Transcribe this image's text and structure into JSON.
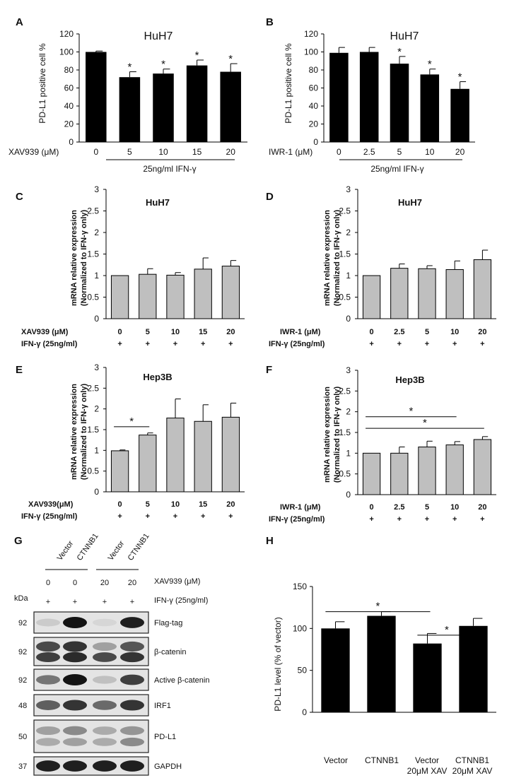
{
  "figure": {
    "A": {
      "letter": "A",
      "title": "HuH7",
      "ylabel": "PD-L1  positive cell %",
      "xlabel": "XAV939 (μM)",
      "treatment": "25ng/ml IFN-γ"
    },
    "B": {
      "letter": "B",
      "title": "HuH7",
      "ylabel": "PD-L1  positive cell %",
      "xlabel": "IWR-1 (μM)",
      "treatment": "25ng/ml IFN-γ"
    },
    "C": {
      "letter": "C",
      "title": "HuH7",
      "ylabel1": "mRNA relative expression",
      "ylabel2": "(Normalized to IFN-γ only)",
      "row1_label": "XAV939 (μM)",
      "row2_label": "IFN-γ (25ng/ml)",
      "plus": "+"
    },
    "D": {
      "letter": "D",
      "title": "HuH7",
      "ylabel1": "mRNA relative expression",
      "ylabel2": "(Normalized to IFN-γ only)",
      "row1_label": "IWR-1 (μM)",
      "row2_label": "IFN-γ (25ng/ml)",
      "plus": "+"
    },
    "E": {
      "letter": "E",
      "title": "Hep3B",
      "ylabel1": "mRNA relative expression",
      "ylabel2": "(Normalized to IFN-γ only)",
      "row1_label": "XAV939(μM)",
      "row2_label": "IFN-γ (25ng/ml)",
      "plus": "+"
    },
    "F": {
      "letter": "F",
      "title": "Hep3B",
      "ylabel1": "mRNA relative expression",
      "ylabel2": "(Normalized to IFN-γ only)",
      "row1_label": "IWR-1 (μM)",
      "row2_label": "IFN-γ (25ng/ml)",
      "plus": "+"
    },
    "G": {
      "letter": "G",
      "lanes": [
        "Vector",
        "CTNNB1",
        "Vector",
        "CTNNB1"
      ],
      "xav_values": [
        "0",
        "0",
        "20",
        "20"
      ],
      "xav_label": "XAV939 (μM)",
      "ifn_label": "IFN-γ (25ng/ml)",
      "plus": "+",
      "kda_label": "kDa",
      "blots": [
        {
          "kda": "92",
          "name": "Flag-tag"
        },
        {
          "kda": "92",
          "name": "β-catenin"
        },
        {
          "kda": "92",
          "name": "Active β-catenin"
        },
        {
          "kda": "48",
          "name": "IRF1"
        },
        {
          "kda": "50",
          "name": "PD-L1"
        },
        {
          "kda": "37",
          "name": "GAPDH"
        }
      ]
    },
    "H": {
      "letter": "H",
      "ylabel": "PD-L1 level (% of vector)",
      "xline1": [
        "Vector",
        "CTNNB1",
        "Vector",
        "CTNNB1"
      ],
      "xline2": [
        "",
        "",
        "20μM XAV",
        "20μM XAV"
      ]
    }
  },
  "chart_data": [
    {
      "panel": "A",
      "type": "bar",
      "title": "HuH7",
      "categories": [
        "0",
        "5",
        "10",
        "15",
        "20"
      ],
      "values": [
        100,
        72,
        76,
        85,
        78
      ],
      "errors": [
        1,
        6,
        5,
        6,
        9
      ],
      "significant": [
        false,
        true,
        true,
        true,
        true
      ],
      "xlabel": "XAV939 (μM)",
      "ylabel": "PD-L1  positive cell %",
      "ylim": [
        0,
        120
      ],
      "yticks": [
        0,
        20,
        40,
        60,
        80,
        100,
        120
      ],
      "bar_color": "#000000",
      "significance_label": "*"
    },
    {
      "panel": "B",
      "type": "bar",
      "title": "HuH7",
      "categories": [
        "0",
        "2.5",
        "5",
        "10",
        "20"
      ],
      "values": [
        99,
        100,
        87,
        75,
        59
      ],
      "errors": [
        6,
        5,
        8,
        6,
        8
      ],
      "significant": [
        false,
        false,
        true,
        true,
        true
      ],
      "xlabel": "IWR-1 (μM)",
      "ylabel": "PD-L1  positive cell %",
      "ylim": [
        0,
        120
      ],
      "yticks": [
        0,
        20,
        40,
        60,
        80,
        100,
        120
      ],
      "bar_color": "#000000",
      "significance_label": "*"
    },
    {
      "panel": "C",
      "type": "bar",
      "title": "HuH7",
      "categories": [
        "0",
        "5",
        "10",
        "15",
        "20"
      ],
      "values": [
        1.0,
        1.03,
        1.01,
        1.15,
        1.22
      ],
      "errors": [
        0,
        0.13,
        0.06,
        0.26,
        0.13
      ],
      "xlabel": "XAV939 (μM)",
      "ylabel": "mRNA relative expression (Normalized to IFN-γ only)",
      "ylim": [
        0,
        3
      ],
      "yticks": [
        0,
        0.5,
        1,
        1.5,
        2,
        2.5,
        3
      ],
      "bar_color": "#bfbfbf",
      "brackets": []
    },
    {
      "panel": "D",
      "type": "bar",
      "title": "HuH7",
      "categories": [
        "0",
        "2.5",
        "5",
        "10",
        "20"
      ],
      "values": [
        1.0,
        1.17,
        1.16,
        1.14,
        1.37
      ],
      "errors": [
        0,
        0.1,
        0.07,
        0.2,
        0.22
      ],
      "xlabel": "IWR-1 (μM)",
      "ylabel": "mRNA relative expression (Normalized to IFN-γ only)",
      "ylim": [
        0,
        3
      ],
      "yticks": [
        0,
        0.5,
        1,
        1.5,
        2,
        2.5,
        3
      ],
      "bar_color": "#bfbfbf",
      "brackets": []
    },
    {
      "panel": "E",
      "type": "bar",
      "title": "Hep3B",
      "categories": [
        "0",
        "5",
        "10",
        "15",
        "20"
      ],
      "values": [
        0.99,
        1.37,
        1.78,
        1.7,
        1.8
      ],
      "errors": [
        0.02,
        0.05,
        0.46,
        0.4,
        0.34
      ],
      "xlabel": "XAV939(μM)",
      "ylabel": "mRNA relative expression (Normalized to IFN-γ only)",
      "ylim": [
        0,
        3
      ],
      "yticks": [
        0,
        0.5,
        1,
        1.5,
        2,
        2.5,
        3
      ],
      "bar_color": "#bfbfbf",
      "brackets": [
        {
          "from": 0,
          "to": 1,
          "at": 1.57,
          "label": "*"
        }
      ]
    },
    {
      "panel": "F",
      "type": "bar",
      "title": "Hep3B",
      "categories": [
        "0",
        "2.5",
        "5",
        "10",
        "20"
      ],
      "values": [
        1.0,
        1.0,
        1.15,
        1.2,
        1.33
      ],
      "errors": [
        0,
        0.15,
        0.14,
        0.08,
        0.07
      ],
      "xlabel": "IWR-1 (μM)",
      "ylabel": "mRNA relative expression (Normalized to IFN-γ only)",
      "ylim": [
        0,
        3
      ],
      "yticks": [
        0,
        0.5,
        1,
        1.5,
        2,
        2.5,
        3
      ],
      "bar_color": "#bfbfbf",
      "brackets": [
        {
          "from": 0,
          "to": 3,
          "at": 1.88,
          "label": "*"
        },
        {
          "from": 0,
          "to": 4,
          "at": 1.6,
          "label": "*"
        }
      ]
    },
    {
      "panel": "H",
      "type": "bar",
      "categories": [
        "Vector",
        "CTNNB1",
        "Vector 20μM XAV",
        "CTNNB1 20μM XAV"
      ],
      "values": [
        100,
        115,
        82,
        103
      ],
      "errors": [
        8,
        5,
        12,
        9
      ],
      "ylabel": "PD-L1 level (% of vector)",
      "ylim": [
        0,
        150
      ],
      "yticks": [
        0,
        50,
        100,
        150
      ],
      "bar_color": "#000000",
      "brackets": [
        {
          "from": 0,
          "to": 2,
          "at": 120,
          "label": "*"
        },
        {
          "from": 2,
          "to": 3,
          "at": 92,
          "label": "*"
        }
      ]
    }
  ]
}
